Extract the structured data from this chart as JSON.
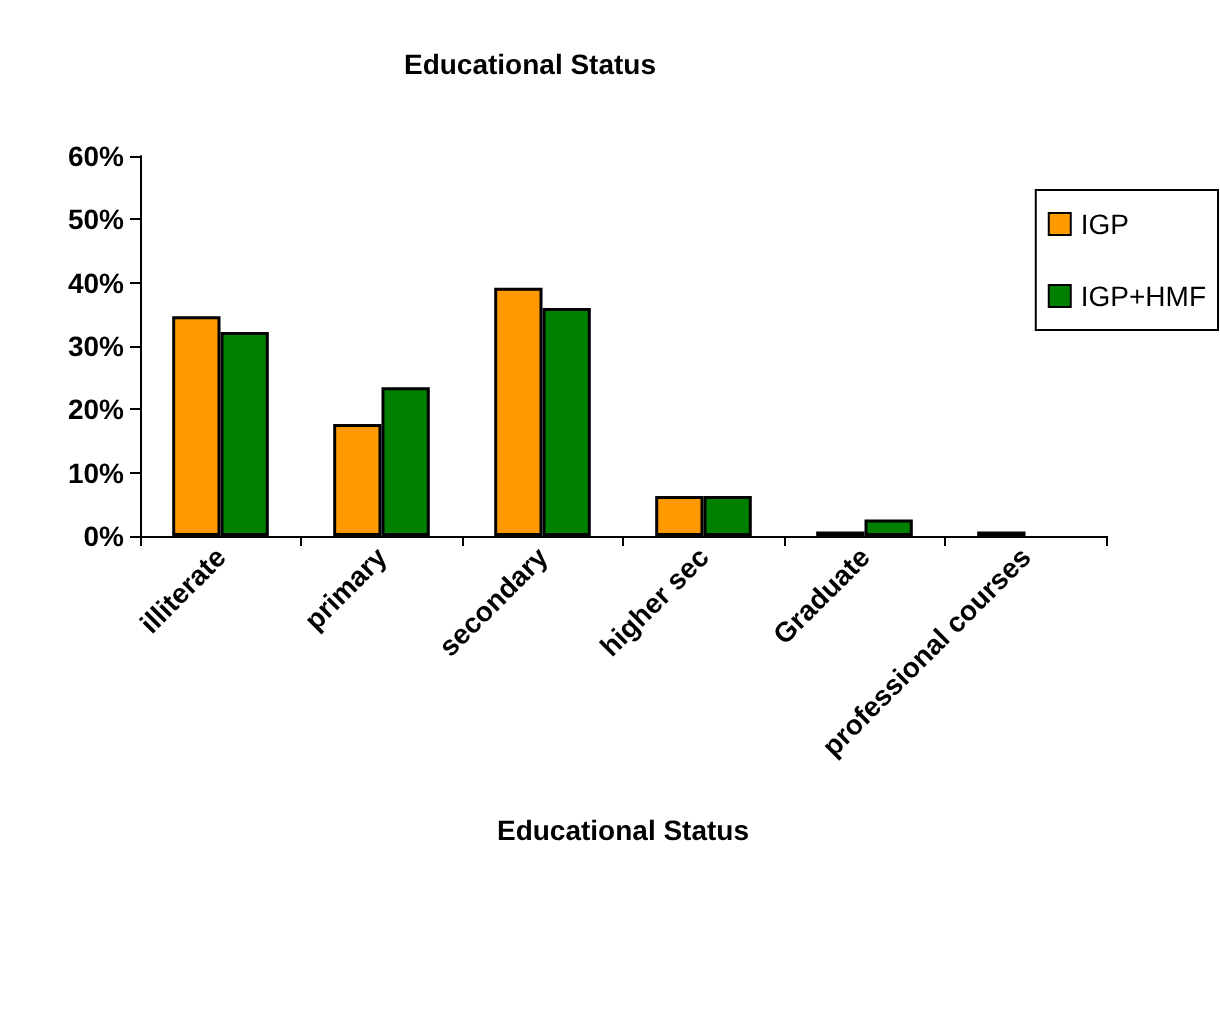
{
  "chart_data": {
    "type": "bar",
    "title": "Educational Status",
    "xlabel": "Educational Status",
    "categories": [
      "illiterate",
      "primary",
      "secondary",
      "higher sec",
      "Graduate",
      "professional courses"
    ],
    "series": [
      {
        "name": "IGP",
        "color": "#ff9900",
        "values": [
          34.7,
          17.7,
          39.2,
          6.3,
          0.7,
          0.7
        ]
      },
      {
        "name": "IGP+HMF",
        "color": "#008000",
        "values": [
          32.2,
          23.5,
          36.0,
          6.3,
          2.6,
          0
        ]
      }
    ],
    "ylim": [
      0,
      60
    ],
    "yticks": [
      {
        "value": 0,
        "label": "0%"
      },
      {
        "value": 10,
        "label": "10%"
      },
      {
        "value": 20,
        "label": "20%"
      },
      {
        "value": 30,
        "label": "30%"
      },
      {
        "value": 40,
        "label": "40%"
      },
      {
        "value": 50,
        "label": "50%"
      },
      {
        "value": 60,
        "label": "60%"
      }
    ],
    "grid": false,
    "legend": "top right"
  }
}
